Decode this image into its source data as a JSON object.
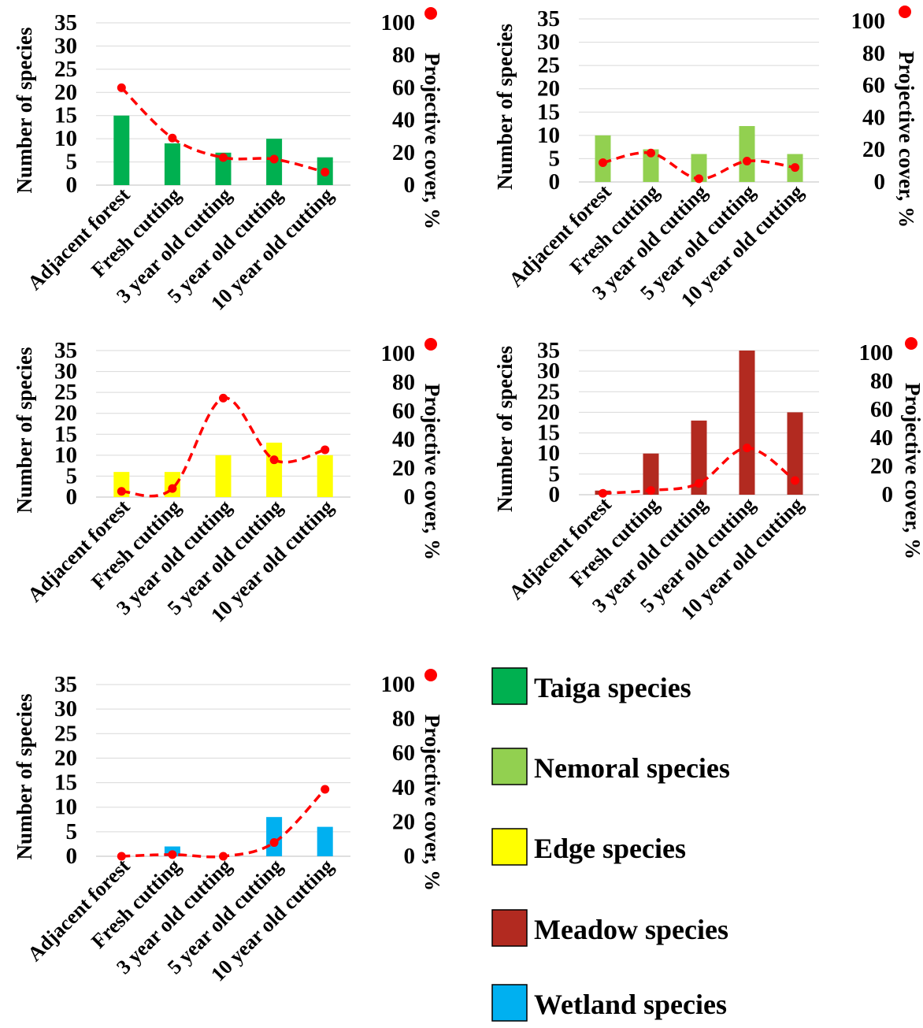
{
  "shared": {
    "categories": [
      "Adjacent forest",
      "Fresh cutting",
      "3 year old cutting",
      "5 year old cutting",
      "10 year old cutting"
    ],
    "left_axis_label": "Number of species",
    "right_axis_label": "Projective cover, %",
    "left_ticks": [
      "0",
      "5",
      "10",
      "15",
      "20",
      "25",
      "30",
      "35"
    ],
    "right_ticks": [
      "0",
      "20",
      "40",
      "60",
      "80",
      "100"
    ],
    "line_color": "#ff0000",
    "grid_color": "#d9d9d9"
  },
  "chart_data": [
    {
      "type": "bar",
      "series_group": "Taiga species",
      "categories": [
        "Adjacent forest",
        "Fresh cutting",
        "3 year old cutting",
        "5 year old cutting",
        "10 year old cutting"
      ],
      "ylabel": "Number of species",
      "y2label": "Projective cover, %",
      "ylim": [
        0,
        35
      ],
      "y2lim": [
        0,
        100
      ],
      "grid": true,
      "bar_color": "#00b050",
      "bars": [
        15,
        9,
        7,
        10,
        6
      ],
      "line": [
        60,
        29,
        17,
        16,
        8
      ]
    },
    {
      "type": "bar",
      "series_group": "Nemoral species",
      "categories": [
        "Adjacent forest",
        "Fresh cutting",
        "3 year old cutting",
        "5 year old cutting",
        "10 year old cutting"
      ],
      "ylabel": "Number of species",
      "y2label": "Projective cover, %",
      "ylim": [
        0,
        35
      ],
      "y2lim": [
        0,
        100
      ],
      "grid": true,
      "bar_color": "#92d050",
      "bars": [
        10,
        7,
        6,
        12,
        6
      ],
      "line": [
        12,
        18,
        2,
        13,
        9
      ]
    },
    {
      "type": "bar",
      "series_group": "Edge species",
      "categories": [
        "Adjacent forest",
        "Fresh cutting",
        "3 year old cutting",
        "5 year old cutting",
        "10 year old cutting"
      ],
      "ylabel": "Number of species",
      "y2label": "Projective cover, %",
      "ylim": [
        0,
        35
      ],
      "y2lim": [
        0,
        100
      ],
      "grid": true,
      "bar_color": "#ffff00",
      "bars": [
        6,
        6,
        10,
        13,
        10
      ],
      "line": [
        4,
        6,
        69,
        26,
        33
      ]
    },
    {
      "type": "bar",
      "series_group": "Meadow species",
      "categories": [
        "Adjacent forest",
        "Fresh cutting",
        "3 year old cutting",
        "5 year old cutting",
        "10 year old cutting"
      ],
      "ylabel": "Number of species",
      "y2label": "Projective cover, %",
      "ylim": [
        0,
        35
      ],
      "y2lim": [
        0,
        100
      ],
      "grid": true,
      "bar_color": "#b22a20",
      "bars": [
        1,
        10,
        18,
        35,
        20
      ],
      "line": [
        1,
        3,
        8,
        33,
        10
      ]
    },
    {
      "type": "bar",
      "series_group": "Wetland species",
      "categories": [
        "Adjacent forest",
        "Fresh cutting",
        "3 year old cutting",
        "5 year old cutting",
        "10 year old cutting"
      ],
      "ylabel": "Number of species",
      "y2label": "Projective cover, %",
      "ylim": [
        0,
        35
      ],
      "y2lim": [
        0,
        100
      ],
      "grid": true,
      "bar_color": "#00b0f0",
      "bars": [
        0,
        2,
        0,
        8,
        6
      ],
      "line": [
        0,
        1,
        0,
        8,
        39
      ]
    }
  ],
  "legend": {
    "items": [
      {
        "label": "Taiga species",
        "color": "#00b050"
      },
      {
        "label": "Nemoral species",
        "color": "#92d050"
      },
      {
        "label": "Edge species",
        "color": "#ffff00"
      },
      {
        "label": "Meadow species",
        "color": "#b22a20"
      },
      {
        "label": "Wetland species",
        "color": "#00b0f0"
      }
    ]
  }
}
